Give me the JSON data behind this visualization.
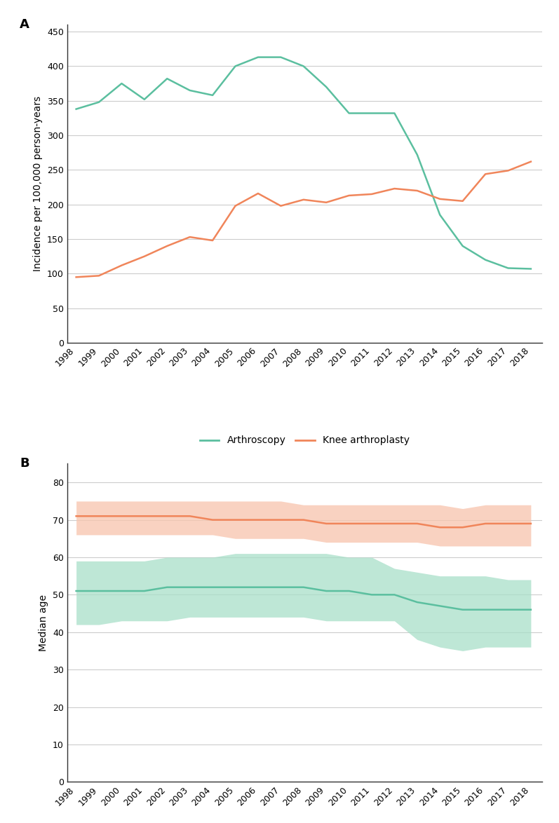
{
  "years": [
    1998,
    1999,
    2000,
    2001,
    2002,
    2003,
    2004,
    2005,
    2006,
    2007,
    2008,
    2009,
    2010,
    2011,
    2012,
    2013,
    2014,
    2015,
    2016,
    2017,
    2018
  ],
  "panel_a": {
    "arthroscopy": [
      338,
      348,
      375,
      352,
      382,
      365,
      358,
      400,
      413,
      413,
      400,
      370,
      332,
      332,
      332,
      272,
      185,
      140,
      120,
      108,
      107
    ],
    "arthroplasty": [
      95,
      97,
      112,
      125,
      140,
      153,
      148,
      198,
      216,
      198,
      207,
      203,
      213,
      215,
      223,
      220,
      208,
      205,
      244,
      249,
      262
    ]
  },
  "panel_b": {
    "arthroscopy_median": [
      51,
      51,
      51,
      51,
      52,
      52,
      52,
      52,
      52,
      52,
      52,
      51,
      51,
      50,
      50,
      48,
      47,
      46,
      46,
      46,
      46
    ],
    "arthroscopy_q1": [
      42,
      42,
      43,
      43,
      43,
      44,
      44,
      44,
      44,
      44,
      44,
      43,
      43,
      43,
      43,
      38,
      36,
      35,
      36,
      36,
      36
    ],
    "arthroscopy_q3": [
      59,
      59,
      59,
      59,
      60,
      60,
      60,
      61,
      61,
      61,
      61,
      61,
      60,
      60,
      57,
      56,
      55,
      55,
      55,
      54,
      54
    ],
    "arthroplasty_median": [
      71,
      71,
      71,
      71,
      71,
      71,
      70,
      70,
      70,
      70,
      70,
      69,
      69,
      69,
      69,
      69,
      68,
      68,
      69,
      69,
      69
    ],
    "arthroplasty_q1": [
      66,
      66,
      66,
      66,
      66,
      66,
      66,
      65,
      65,
      65,
      65,
      64,
      64,
      64,
      64,
      64,
      63,
      63,
      63,
      63,
      63
    ],
    "arthroplasty_q3": [
      75,
      75,
      75,
      75,
      75,
      75,
      75,
      75,
      75,
      75,
      74,
      74,
      74,
      74,
      74,
      74,
      74,
      73,
      74,
      74,
      74
    ]
  },
  "colors": {
    "arthroscopy_line": "#5bbf9f",
    "arthroplasty_line": "#f0855a",
    "arthroscopy_fill": "#a8dfc9",
    "arthroplasty_fill": "#f8c4ad"
  },
  "panel_a_ylabel": "Incidence per 100,000 person-years",
  "panel_b_ylabel": "Median age",
  "panel_a_ylim": [
    0,
    460
  ],
  "panel_b_ylim": [
    0,
    85
  ],
  "panel_a_yticks": [
    0,
    50,
    100,
    150,
    200,
    250,
    300,
    350,
    400,
    450
  ],
  "panel_b_yticks": [
    0,
    10,
    20,
    30,
    40,
    50,
    60,
    70,
    80
  ],
  "legend_arthroscopy": "Arthroscopy",
  "legend_arthroplasty": "Knee arthroplasty",
  "label_a": "A",
  "label_b": "B",
  "background_color": "#ffffff",
  "grid_color": "#cccccc",
  "spine_color": "#333333"
}
